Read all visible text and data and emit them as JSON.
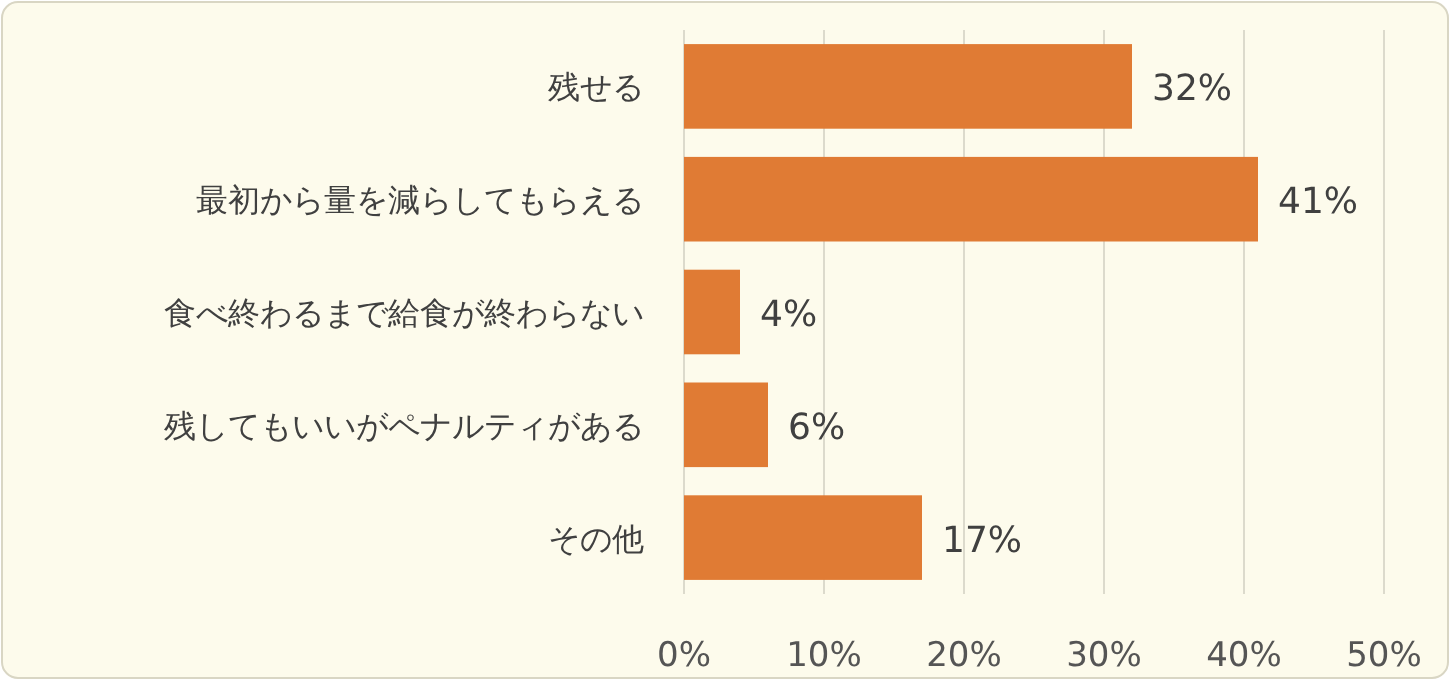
{
  "chart_data": {
    "type": "bar",
    "orientation": "horizontal",
    "categories": [
      "残せる",
      "最初から量を減らしてもらえる",
      "食べ終わるまで給食が終わらない",
      "残してもいいがペナルティがある",
      "その他"
    ],
    "values": [
      32,
      41,
      4,
      6,
      17
    ],
    "value_labels": [
      "32%",
      "41%",
      "4%",
      "6%",
      "17%"
    ],
    "color": "#e07b34",
    "xlim": [
      0,
      50
    ],
    "xticks": [
      {
        "value": 0,
        "label": "0%"
      },
      {
        "value": 10,
        "label": "10%"
      },
      {
        "value": 20,
        "label": "20%"
      },
      {
        "value": 30,
        "label": "30%"
      },
      {
        "value": 40,
        "label": "40%"
      },
      {
        "value": 50,
        "label": "50%"
      }
    ],
    "grid": "x"
  }
}
